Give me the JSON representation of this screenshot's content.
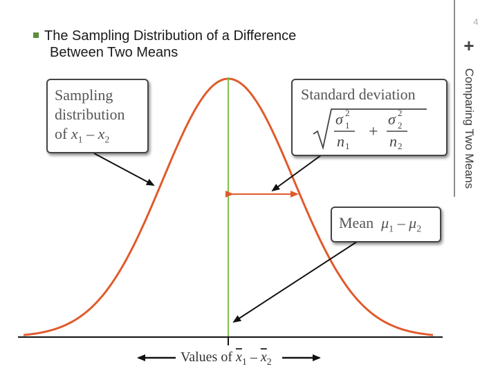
{
  "slide": {
    "title_line1": "The Sampling Distribution of a Difference",
    "title_line2": "Between Two Means",
    "page_number": "4",
    "section_label": "Comparing Two Means",
    "section_marker": "+"
  },
  "diagram": {
    "callout_sampling": {
      "line1": "Sampling",
      "line2": "distribution",
      "line3_prefix": "of ",
      "line3_var1": "x",
      "line3_sub1": "1",
      "line3_minus": " – ",
      "line3_var2": "x",
      "line3_sub2": "2"
    },
    "callout_std": {
      "title": "Standard deviation",
      "sigma": "σ",
      "n": "n",
      "sub1": "1",
      "sub2": "2",
      "sup": "2",
      "plus": "+"
    },
    "callout_mean": {
      "word": "Mean",
      "mu": "μ",
      "sub1": "1",
      "sub2": "2",
      "minus": " – "
    },
    "axis_label": {
      "prefix": "Values of ",
      "var": "x",
      "sub1": "1",
      "minus": " – ",
      "sub2": "2"
    },
    "colors": {
      "curve": "#e05a2b",
      "center_line": "#7cc24a",
      "spread_arrow": "#e05a2b",
      "pointer": "#111111",
      "box_border": "#444444"
    }
  }
}
